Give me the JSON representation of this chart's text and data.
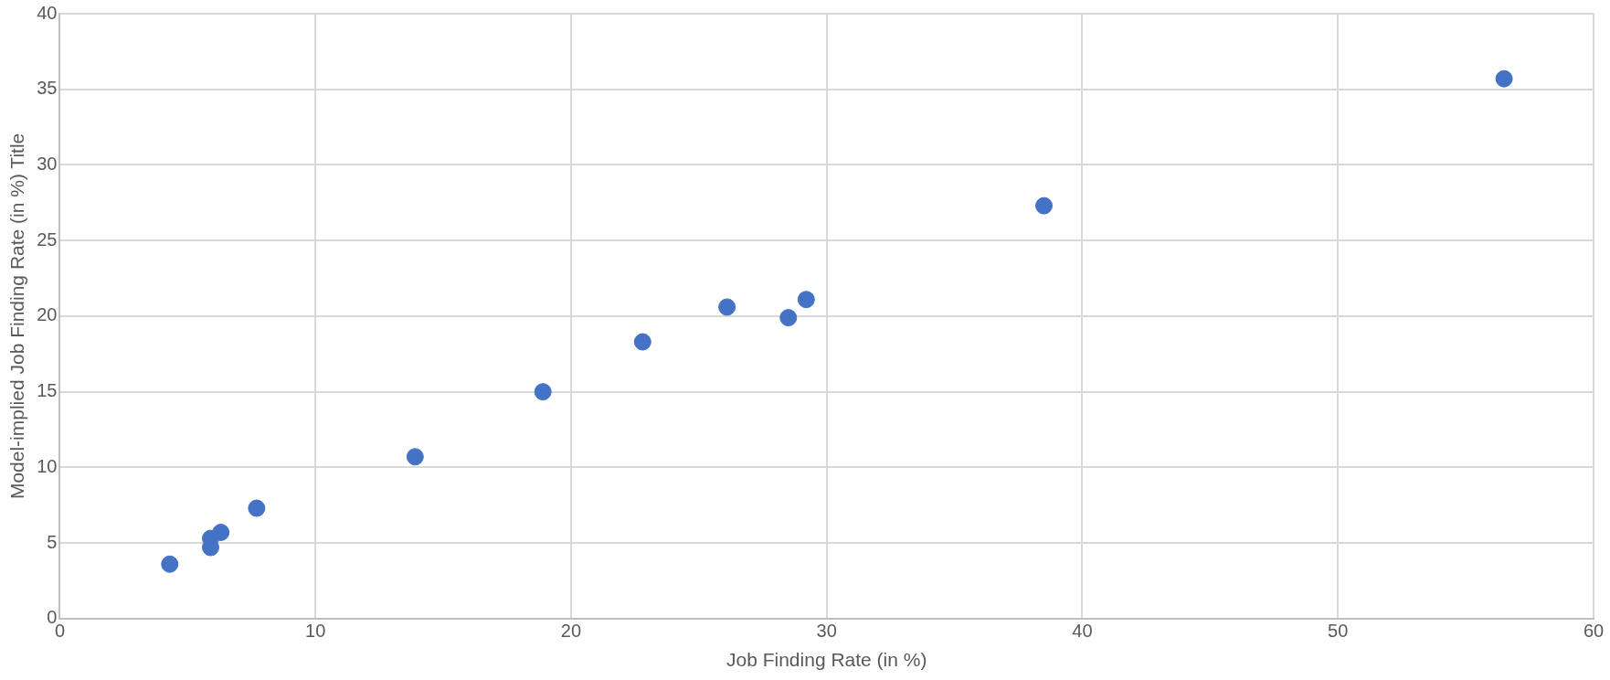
{
  "chart_data": {
    "type": "scatter",
    "xlabel": "Job Finding Rate (in %)",
    "ylabel": "Model-implied Job Finding Rate (in %) Title",
    "x": [
      4.3,
      5.9,
      5.9,
      6.3,
      7.7,
      13.9,
      18.9,
      22.8,
      26.1,
      28.5,
      29.2,
      38.5,
      56.5
    ],
    "series": [
      {
        "color": "#4472c4",
        "values": [
          3.6,
          4.7,
          5.3,
          5.7,
          7.3,
          10.7,
          15.0,
          18.3,
          20.6,
          19.9,
          21.1,
          27.3,
          35.7
        ]
      }
    ],
    "xlim": [
      0,
      60
    ],
    "xticks": [
      0,
      10,
      20,
      30,
      40,
      50,
      60
    ],
    "ylim": [
      0,
      40
    ],
    "yticks": [
      0,
      5,
      10,
      15,
      20,
      25,
      30,
      35,
      40
    ],
    "grid": true,
    "legend": false,
    "marker": "circle"
  }
}
